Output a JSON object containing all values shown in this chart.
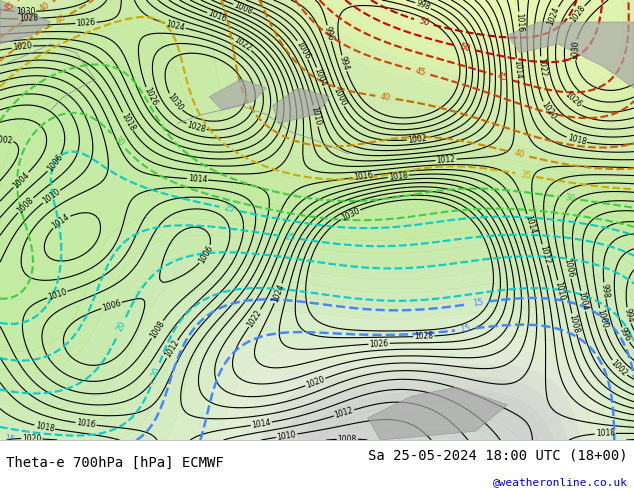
{
  "title_left": "Theta-e 700hPa [hPa] ECMWF",
  "title_right": "Sa 25-05-2024 18:00 UTC (18+00)",
  "credit": "@weatheronline.co.uk",
  "title_fontsize": 10,
  "credit_fontsize": 8,
  "fig_width": 6.34,
  "fig_height": 4.9,
  "dpi": 100,
  "background_color": "#ffffff",
  "map_bg_color": "#d8ecd8",
  "ocean_color": "#c8d8e8",
  "land_gray_color": "#b0b0b0",
  "bottom_bar_color": "#ffffff",
  "title_color": "#000080",
  "credit_color": "#0000cc"
}
